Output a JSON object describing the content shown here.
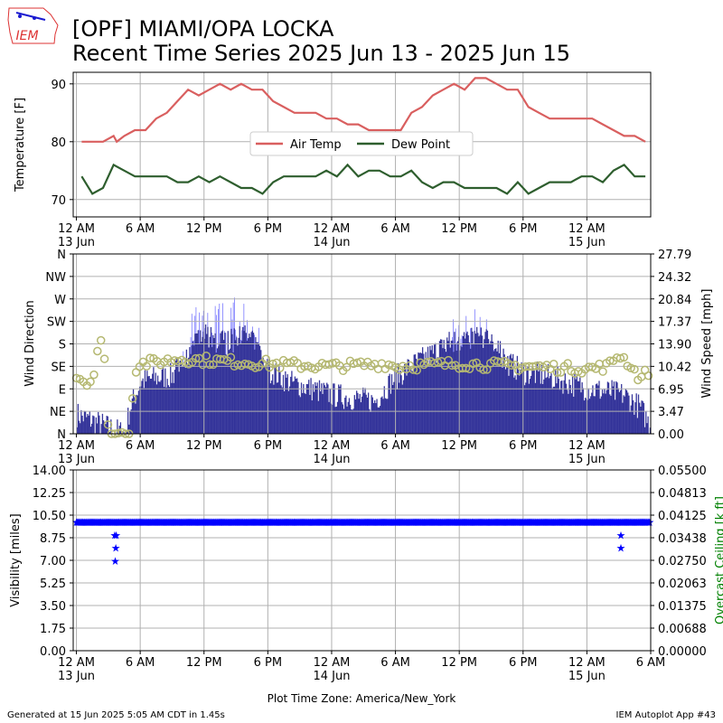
{
  "header": {
    "title_line1": "[OPF] MIAMI/OPA LOCKA",
    "title_line2": "Recent Time Series 2025 Jun 13 - 2025 Jun 15",
    "logo_text": "IEM"
  },
  "footer": {
    "left": "Generated at 15 Jun 2025 5:05 AM CDT in 1.45s",
    "center": "Plot Time Zone: America/New_York",
    "right": "IEM Autoplot App #43"
  },
  "chart_data": [
    {
      "type": "line",
      "panel": "temperature",
      "ylabel": "Temperature [F]",
      "ylim": [
        67,
        92
      ],
      "yticks": [
        70,
        80,
        90
      ],
      "grid": true,
      "legend_position": "center",
      "x_units": "hours since 12 AM 13 Jun",
      "xlim": [
        -0.3,
        54
      ],
      "xticks": [
        {
          "x": 0,
          "label": "12 AM",
          "sub": "13 Jun"
        },
        {
          "x": 6,
          "label": "6 AM",
          "sub": ""
        },
        {
          "x": 12,
          "label": "12 PM",
          "sub": ""
        },
        {
          "x": 18,
          "label": "6 PM",
          "sub": ""
        },
        {
          "x": 24,
          "label": "12 AM",
          "sub": "14 Jun"
        },
        {
          "x": 30,
          "label": "6 AM",
          "sub": ""
        },
        {
          "x": 36,
          "label": "12 PM",
          "sub": ""
        },
        {
          "x": 42,
          "label": "6 PM",
          "sub": ""
        },
        {
          "x": 48,
          "label": "12 AM",
          "sub": "15 Jun"
        }
      ],
      "series": [
        {
          "name": "Air Temp",
          "color": "#d95f5f",
          "points": [
            [
              0.5,
              80
            ],
            [
              1.5,
              80
            ],
            [
              2.5,
              80
            ],
            [
              3.5,
              81
            ],
            [
              3.8,
              80
            ],
            [
              4.5,
              81
            ],
            [
              5.5,
              82
            ],
            [
              6.5,
              82
            ],
            [
              7.5,
              84
            ],
            [
              8.5,
              85
            ],
            [
              9.5,
              87
            ],
            [
              10.5,
              89
            ],
            [
              11.5,
              88
            ],
            [
              12.5,
              89
            ],
            [
              13.5,
              90
            ],
            [
              14.5,
              89
            ],
            [
              15.5,
              90
            ],
            [
              16.5,
              89
            ],
            [
              17.5,
              89
            ],
            [
              18.5,
              87
            ],
            [
              19.5,
              86
            ],
            [
              20.5,
              85
            ],
            [
              21.5,
              85
            ],
            [
              22.5,
              85
            ],
            [
              23.5,
              84
            ],
            [
              24.5,
              84
            ],
            [
              25.5,
              83
            ],
            [
              26.5,
              83
            ],
            [
              27.5,
              82
            ],
            [
              28.5,
              82
            ],
            [
              29.5,
              82
            ],
            [
              30.5,
              82
            ],
            [
              31.5,
              85
            ],
            [
              32.5,
              86
            ],
            [
              33.5,
              88
            ],
            [
              34.5,
              89
            ],
            [
              35.5,
              90
            ],
            [
              36.5,
              89
            ],
            [
              37.5,
              91
            ],
            [
              38.5,
              91
            ],
            [
              39.5,
              90
            ],
            [
              40.5,
              89
            ],
            [
              41.5,
              89
            ],
            [
              42.5,
              86
            ],
            [
              43.5,
              85
            ],
            [
              44.5,
              84
            ],
            [
              45.5,
              84
            ],
            [
              46.5,
              84
            ],
            [
              47.5,
              84
            ],
            [
              48.5,
              84
            ],
            [
              49.5,
              83
            ],
            [
              50.5,
              82
            ],
            [
              51.5,
              81
            ],
            [
              52.5,
              81
            ],
            [
              53.5,
              80
            ]
          ]
        },
        {
          "name": "Dew Point",
          "color": "#2e5e2e",
          "points": [
            [
              0.5,
              74
            ],
            [
              1.5,
              71
            ],
            [
              2.5,
              72
            ],
            [
              3.5,
              76
            ],
            [
              4.5,
              75
            ],
            [
              5.5,
              74
            ],
            [
              6.5,
              74
            ],
            [
              7.5,
              74
            ],
            [
              8.5,
              74
            ],
            [
              9.5,
              73
            ],
            [
              10.5,
              73
            ],
            [
              11.5,
              74
            ],
            [
              12.5,
              73
            ],
            [
              13.5,
              74
            ],
            [
              14.5,
              73
            ],
            [
              15.5,
              72
            ],
            [
              16.5,
              72
            ],
            [
              17.5,
              71
            ],
            [
              18.5,
              73
            ],
            [
              19.5,
              74
            ],
            [
              20.5,
              74
            ],
            [
              21.5,
              74
            ],
            [
              22.5,
              74
            ],
            [
              23.5,
              75
            ],
            [
              24.5,
              74
            ],
            [
              25.5,
              76
            ],
            [
              26.5,
              74
            ],
            [
              27.5,
              75
            ],
            [
              28.5,
              75
            ],
            [
              29.5,
              74
            ],
            [
              30.5,
              74
            ],
            [
              31.5,
              75
            ],
            [
              32.5,
              73
            ],
            [
              33.5,
              72
            ],
            [
              34.5,
              73
            ],
            [
              35.5,
              73
            ],
            [
              36.5,
              72
            ],
            [
              37.5,
              72
            ],
            [
              38.5,
              72
            ],
            [
              39.5,
              72
            ],
            [
              40.5,
              71
            ],
            [
              41.5,
              73
            ],
            [
              42.5,
              71
            ],
            [
              43.5,
              72
            ],
            [
              44.5,
              73
            ],
            [
              45.5,
              73
            ],
            [
              46.5,
              73
            ],
            [
              47.5,
              74
            ],
            [
              48.5,
              74
            ],
            [
              49.5,
              73
            ],
            [
              50.5,
              75
            ],
            [
              51.5,
              76
            ],
            [
              52.5,
              74
            ],
            [
              53.5,
              74
            ]
          ]
        }
      ]
    },
    {
      "type": "bar",
      "panel": "wind",
      "ylabel": "Wind Direction",
      "y2label": "Wind Speed [mph]",
      "ylim": [
        0,
        360
      ],
      "yticks": [
        {
          "v": 0,
          "label": "N"
        },
        {
          "v": 45,
          "label": "NE"
        },
        {
          "v": 90,
          "label": "E"
        },
        {
          "v": 135,
          "label": "SE"
        },
        {
          "v": 180,
          "label": "S"
        },
        {
          "v": 225,
          "label": "SW"
        },
        {
          "v": 270,
          "label": "W"
        },
        {
          "v": 315,
          "label": "NW"
        },
        {
          "v": 360,
          "label": "N"
        }
      ],
      "y2lim": [
        0,
        27.79
      ],
      "y2ticks": [
        "0.00",
        "3.47",
        "6.95",
        "10.42",
        "13.90",
        "17.37",
        "20.84",
        "24.32",
        "27.79"
      ],
      "grid": true,
      "speed_color": "#000080",
      "gust_color": "#0000ff",
      "direction_color": "#b5b871",
      "wind_speed_profile": [
        [
          0,
          3
        ],
        [
          3,
          1
        ],
        [
          4.5,
          0
        ],
        [
          5,
          4
        ],
        [
          6,
          8
        ],
        [
          7,
          8.5
        ],
        [
          9,
          9
        ],
        [
          10.5,
          13
        ],
        [
          12,
          15
        ],
        [
          14,
          14
        ],
        [
          16,
          15
        ],
        [
          17,
          13
        ],
        [
          18,
          10
        ],
        [
          20,
          8
        ],
        [
          22,
          7
        ],
        [
          24,
          6
        ],
        [
          26,
          5.5
        ],
        [
          28,
          5
        ],
        [
          29.5,
          8
        ],
        [
          31,
          10
        ],
        [
          33,
          12
        ],
        [
          35,
          14
        ],
        [
          37,
          15
        ],
        [
          39,
          14
        ],
        [
          40.5,
          11
        ],
        [
          42,
          9.5
        ],
        [
          44,
          9
        ],
        [
          46,
          8
        ],
        [
          48,
          7
        ],
        [
          50,
          6.5
        ],
        [
          51.5,
          6
        ],
        [
          53,
          4
        ],
        [
          54,
          1
        ]
      ],
      "wind_gust_profile": [
        [
          0,
          0
        ],
        [
          9,
          0
        ],
        [
          10.5,
          18
        ],
        [
          12,
          19
        ],
        [
          14,
          20
        ],
        [
          16,
          19
        ],
        [
          17,
          17
        ],
        [
          18,
          0
        ],
        [
          34,
          0
        ],
        [
          35,
          18
        ],
        [
          37,
          19
        ],
        [
          39,
          17
        ],
        [
          40.5,
          0
        ],
        [
          54,
          0
        ]
      ],
      "wind_direction_profile": [
        [
          0,
          120
        ],
        [
          1,
          100
        ],
        [
          1.5,
          110
        ],
        [
          2,
          170
        ],
        [
          2.5,
          200
        ],
        [
          3,
          0
        ],
        [
          4,
          0
        ],
        [
          5,
          0
        ],
        [
          5.5,
          130
        ],
        [
          6,
          140
        ],
        [
          10,
          150
        ],
        [
          18,
          140
        ],
        [
          24,
          135
        ],
        [
          29,
          140
        ],
        [
          30,
          135
        ],
        [
          36,
          140
        ],
        [
          42,
          135
        ],
        [
          48,
          130
        ],
        [
          50,
          135
        ],
        [
          51,
          160
        ],
        [
          52,
          140
        ],
        [
          53,
          110
        ],
        [
          54,
          130
        ]
      ]
    },
    {
      "type": "scatter",
      "panel": "visibility",
      "ylabel": "Visibility [miles]",
      "y2label": "Overcast Ceiling [k ft]",
      "y2label_color": "#008000",
      "ylim": [
        0,
        14
      ],
      "yticks": [
        "0.00",
        "1.75",
        "3.50",
        "5.25",
        "7.00",
        "8.75",
        "10.50",
        "12.25",
        "14.00"
      ],
      "y2lim": [
        0,
        0.055
      ],
      "y2ticks": [
        "0.00000",
        "0.00688",
        "0.01375",
        "0.02063",
        "0.02750",
        "0.03438",
        "0.04125",
        "0.04813",
        "0.05500"
      ],
      "grid": true,
      "visibility_color": "#0000ff",
      "xticks": [
        {
          "x": 0,
          "label": "12 AM",
          "sub": "13 Jun"
        },
        {
          "x": 6,
          "label": "6 AM",
          "sub": ""
        },
        {
          "x": 12,
          "label": "12 PM",
          "sub": ""
        },
        {
          "x": 18,
          "label": "6 PM",
          "sub": ""
        },
        {
          "x": 24,
          "label": "12 AM",
          "sub": "14 Jun"
        },
        {
          "x": 30,
          "label": "6 AM",
          "sub": ""
        },
        {
          "x": 36,
          "label": "12 PM",
          "sub": ""
        },
        {
          "x": 42,
          "label": "6 PM",
          "sub": ""
        },
        {
          "x": 48,
          "label": "12 AM",
          "sub": "15 Jun"
        },
        {
          "x": 54,
          "label": "6 AM",
          "sub": ""
        }
      ],
      "baseline_visibility": 10,
      "low_visibility_points": [
        [
          3.6,
          9
        ],
        [
          3.75,
          9
        ],
        [
          3.7,
          8
        ],
        [
          3.65,
          7
        ],
        [
          51.2,
          9
        ],
        [
          51.2,
          8
        ]
      ]
    }
  ]
}
